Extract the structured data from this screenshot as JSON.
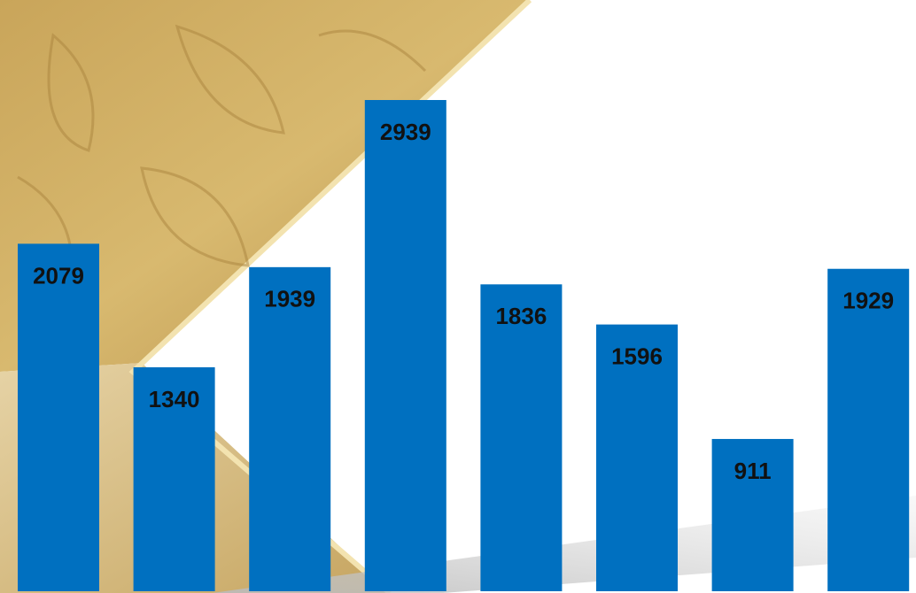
{
  "chart_data": {
    "type": "bar",
    "values": [
      2079,
      1340,
      1939,
      2939,
      1836,
      1596,
      911,
      1929
    ],
    "color": "#0070c0"
  }
}
